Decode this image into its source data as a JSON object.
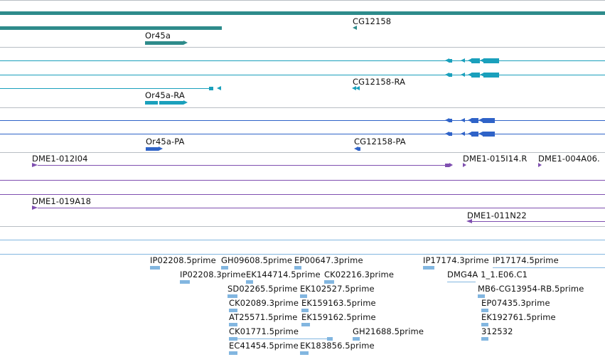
{
  "colors": {
    "gene": "#2e8b8b",
    "mrna": "#1aa0bc",
    "protein": "#2f63c8",
    "clone": "#7f4fb0",
    "est": "#82b6e0",
    "divider": "#b8bec4"
  },
  "gene_track": {
    "labels": {
      "or45a": "Or45a",
      "cg12158": "CG12158"
    }
  },
  "mrna_track": {
    "labels": {
      "or45a_ra": "Or45a-RA",
      "cg12158_ra": "CG12158-RA"
    }
  },
  "protein_track": {
    "labels": {
      "or45a_pa": "Or45a-PA",
      "cg12158_pa": "CG12158-PA"
    }
  },
  "clone_track": {
    "labels": {
      "dme1_012i04": "DME1-012I04",
      "dme1_015i14": "DME1-015I14.R",
      "dme1_004a06": "DME1-004A06.",
      "dme1_019a18": "DME1-019A18",
      "dme1_011n22": "DME1-011N22"
    }
  },
  "est_track": {
    "labels": [
      "IP02208.5prime",
      "GH09608.5prime",
      "EP00647.3prime",
      "IP17174.3prime",
      "IP17174.5prime",
      "IP02208.3prime",
      "EK144714.5prime",
      "CK02216.3prime",
      "DMG4A 1_1.E06.C1",
      "SD02265.5prime",
      "EK102527.5prime",
      "MB6-CG13954-RB.5prime",
      "CK02089.3prime",
      "EK159163.5prime",
      "EP07435.3prime",
      "AT25571.5prime",
      "EK159162.5prime",
      "EK192761.5prime",
      "CK01771.5prime",
      "GH21688.5prime",
      "312532",
      "EC41454.5prime",
      "EK183856.5prime"
    ]
  }
}
